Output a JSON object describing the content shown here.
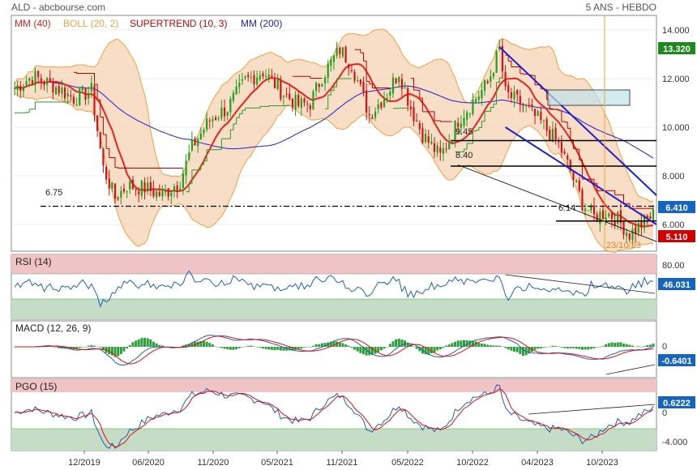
{
  "header": {
    "site": "ALD - abcbourse.com",
    "period": "5 ANS - HEBDO"
  },
  "legend": {
    "mm40": "MM (40)",
    "boll": "BOLL (20, 2)",
    "supertrend": "SUPERTREND (10, 3)",
    "mm200": "MM (200)"
  },
  "colors": {
    "mm40": "#e8231c",
    "boll": "#f0a040",
    "boll_fill": "#f5d3b3",
    "supertrend": "#c00000",
    "mm200": "#1f1fd0",
    "up": "#1ea01e",
    "down": "#d81010",
    "price_badge": "#1e8a1e",
    "last_badge": "#1565c0",
    "low_badge": "#d00000",
    "rsi": "#2060c0",
    "macd": "#1f5fb0",
    "signal": "#e01010",
    "histogram": "#2e9e3a",
    "pgo": "#1f5fb0",
    "overbought": "#f0c4c4",
    "oversold": "#c6dcc6"
  },
  "chart_data": [
    {
      "type": "candlestick",
      "panel": "price",
      "y_ticks": [
        "14.000",
        "12.000",
        "10.000",
        "8.000",
        "6.000"
      ],
      "ylim": [
        4.9,
        14.6
      ],
      "x_ticks": [
        "12/2019",
        "06/2020",
        "11/2020",
        "05/2021",
        "11/2021",
        "05/2022",
        "10/2022",
        "04/2023",
        "10/2023"
      ],
      "badges": {
        "high": "13.320",
        "last": "6.410",
        "low": "5.110"
      },
      "levels": [
        {
          "label": "9.45",
          "value": 9.45
        },
        {
          "label": "8.40",
          "value": 8.4
        },
        {
          "label": "6.75",
          "value": 6.75
        },
        {
          "label": "6.14",
          "value": 6.14
        }
      ],
      "annotation": "23/10/23",
      "close_path": [
        [
          0,
          11.6
        ],
        [
          6,
          12.1
        ],
        [
          12,
          11.8
        ],
        [
          20,
          11.2
        ],
        [
          26,
          11.5
        ],
        [
          30,
          8.3
        ],
        [
          34,
          7.1
        ],
        [
          38,
          7.6
        ],
        [
          44,
          7.5
        ],
        [
          50,
          7.2
        ],
        [
          56,
          7.8
        ],
        [
          60,
          9.2
        ],
        [
          66,
          10.3
        ],
        [
          72,
          10.8
        ],
        [
          78,
          11.9
        ],
        [
          84,
          12.3
        ],
        [
          90,
          11.5
        ],
        [
          96,
          10.9
        ],
        [
          100,
          11.0
        ],
        [
          104,
          12.1
        ],
        [
          110,
          13.2
        ],
        [
          114,
          12.6
        ],
        [
          120,
          10.5
        ],
        [
          126,
          11.4
        ],
        [
          130,
          12.3
        ],
        [
          134,
          10.8
        ],
        [
          138,
          9.7
        ],
        [
          144,
          8.8
        ],
        [
          148,
          9.7
        ],
        [
          150,
          10.3
        ],
        [
          156,
          11.2
        ],
        [
          160,
          11.8
        ],
        [
          164,
          13.2
        ],
        [
          166,
          11.4
        ],
        [
          172,
          10.9
        ],
        [
          178,
          10.2
        ],
        [
          184,
          9.3
        ],
        [
          188,
          8.2
        ],
        [
          192,
          6.9
        ],
        [
          196,
          6.3
        ],
        [
          200,
          6.5
        ],
        [
          204,
          6.2
        ],
        [
          208,
          5.6
        ],
        [
          212,
          6.0
        ],
        [
          216,
          6.41
        ]
      ]
    },
    {
      "type": "line",
      "panel": "RSI (14)",
      "label": "RSI (14)",
      "y_ticks": [
        "80.00"
      ],
      "last": "46.031"
    },
    {
      "type": "line",
      "panel": "MACD (12, 26, 9)",
      "label": "MACD (12, 26, 9)",
      "y_ticks": [
        "0"
      ],
      "last": "-0.6401"
    },
    {
      "type": "line",
      "panel": "PGO (15)",
      "label": "PGO (15)",
      "y_ticks": [
        "0",
        "-4.000"
      ],
      "last": "0.6222"
    }
  ]
}
